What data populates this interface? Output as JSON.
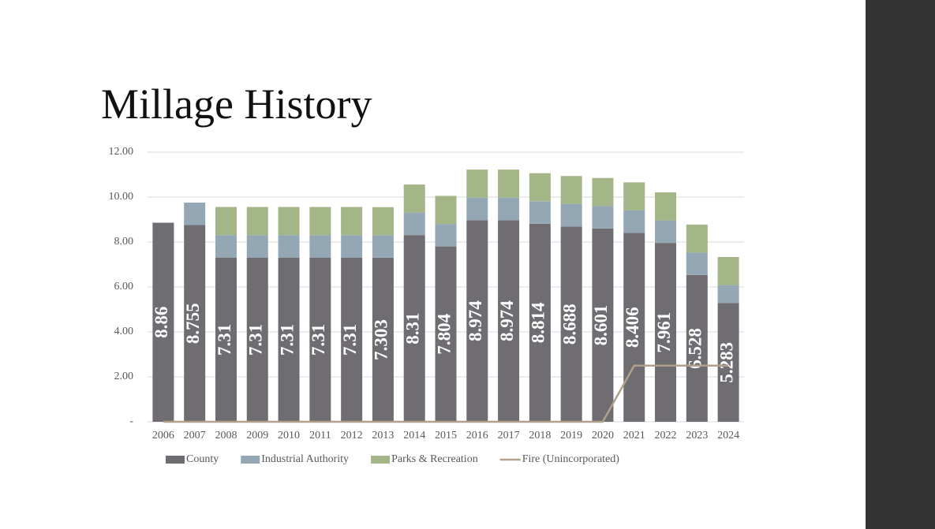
{
  "chart_data": {
    "type": "bar",
    "stacked": true,
    "title": "Millage History",
    "categories": [
      "2006",
      "2007",
      "2008",
      "2009",
      "2010",
      "2011",
      "2012",
      "2013",
      "2014",
      "2015",
      "2016",
      "2017",
      "2018",
      "2019",
      "2020",
      "2021",
      "2022",
      "2023",
      "2024"
    ],
    "series": [
      {
        "name": "County",
        "color": "#6f6d72",
        "type": "bar",
        "values": [
          8.86,
          8.755,
          7.31,
          7.31,
          7.31,
          7.31,
          7.31,
          7.303,
          8.31,
          7.804,
          8.974,
          8.974,
          8.814,
          8.688,
          8.601,
          8.406,
          7.961,
          6.528,
          5.283
        ]
      },
      {
        "name": "Industrial Authority",
        "color": "#94a7b5",
        "type": "bar",
        "values": [
          0,
          1.0,
          1.0,
          1.0,
          1.0,
          1.0,
          1.0,
          1.0,
          1.0,
          1.0,
          1.0,
          1.0,
          1.0,
          1.0,
          1.0,
          1.0,
          1.0,
          1.0,
          0.8
        ]
      },
      {
        "name": "Parks & Recreation",
        "color": "#a4b587",
        "type": "bar",
        "values": [
          0,
          0,
          1.25,
          1.25,
          1.25,
          1.25,
          1.25,
          1.25,
          1.25,
          1.25,
          1.25,
          1.25,
          1.25,
          1.25,
          1.25,
          1.25,
          1.25,
          1.25,
          1.25
        ]
      },
      {
        "name": "Fire (Unincorporated)",
        "color": "#b0a08a",
        "type": "line",
        "values": [
          0,
          0,
          0,
          0,
          0,
          0,
          0,
          0,
          0,
          0,
          0,
          0,
          0,
          0,
          0,
          2.5,
          2.5,
          2.5,
          2.5
        ]
      }
    ],
    "ylim": [
      0,
      12
    ],
    "yticks": [
      {
        "value": 0,
        "label": "-"
      },
      {
        "value": 2,
        "label": "2.00"
      },
      {
        "value": 4,
        "label": "4.00"
      },
      {
        "value": 6,
        "label": "6.00"
      },
      {
        "value": 8,
        "label": "8.00"
      },
      {
        "value": 10,
        "label": "10.00"
      },
      {
        "value": 12,
        "label": "12.00"
      }
    ],
    "grid": true,
    "legend": "bottom",
    "data_labels_series": 0
  }
}
